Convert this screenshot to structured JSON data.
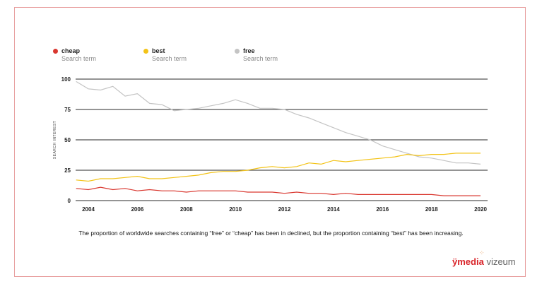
{
  "chart_data": {
    "type": "line",
    "title": "",
    "xlabel": "",
    "ylabel": "SEARCH INTEREST",
    "ylim": [
      0,
      100
    ],
    "xlim": [
      2003.5,
      2020.2
    ],
    "yticks": [
      "0",
      "25",
      "50",
      "75",
      "100"
    ],
    "xticks": [
      "2004",
      "2006",
      "2008",
      "2010",
      "2012",
      "2014",
      "2016",
      "2018",
      "2020"
    ],
    "grid": true,
    "legend_position": "top-left",
    "legend_subtitle": "Search term",
    "x": [
      2003.5,
      2004,
      2004.5,
      2005,
      2005.5,
      2006,
      2006.5,
      2007,
      2007.5,
      2008,
      2008.5,
      2009,
      2009.5,
      2010,
      2010.5,
      2011,
      2011.5,
      2012,
      2012.5,
      2013,
      2013.5,
      2014,
      2014.5,
      2015,
      2015.5,
      2016,
      2016.5,
      2017,
      2017.5,
      2018,
      2018.5,
      2019,
      2019.5,
      2020
    ],
    "series": [
      {
        "name": "cheap",
        "color": "#d9372f",
        "values": [
          10,
          9,
          11,
          9,
          10,
          8,
          9,
          8,
          8,
          7,
          8,
          8,
          8,
          8,
          7,
          7,
          7,
          6,
          7,
          6,
          6,
          5,
          6,
          5,
          5,
          5,
          5,
          5,
          5,
          5,
          4,
          4,
          4,
          4
        ]
      },
      {
        "name": "best",
        "color": "#f3c317",
        "values": [
          17,
          16,
          18,
          18,
          19,
          20,
          18,
          18,
          19,
          20,
          21,
          23,
          24,
          24,
          25,
          27,
          28,
          27,
          28,
          31,
          30,
          33,
          32,
          33,
          34,
          35,
          36,
          38,
          37,
          38,
          38,
          39,
          39,
          39
        ]
      },
      {
        "name": "free",
        "color": "#c4c4c4",
        "values": [
          98,
          92,
          91,
          94,
          86,
          88,
          80,
          79,
          74,
          75,
          76,
          78,
          80,
          83,
          80,
          76,
          76,
          75,
          71,
          68,
          64,
          60,
          56,
          53,
          50,
          45,
          42,
          39,
          36,
          35,
          33,
          31,
          31,
          30
        ]
      }
    ]
  },
  "caption": "The proportion of worldwide searches containing “free” or “cheap” has been in declined, but the proportion containing “best” has been increasing.",
  "logo": {
    "brand1": "ÿmedia",
    "brand2": "vizeum"
  }
}
